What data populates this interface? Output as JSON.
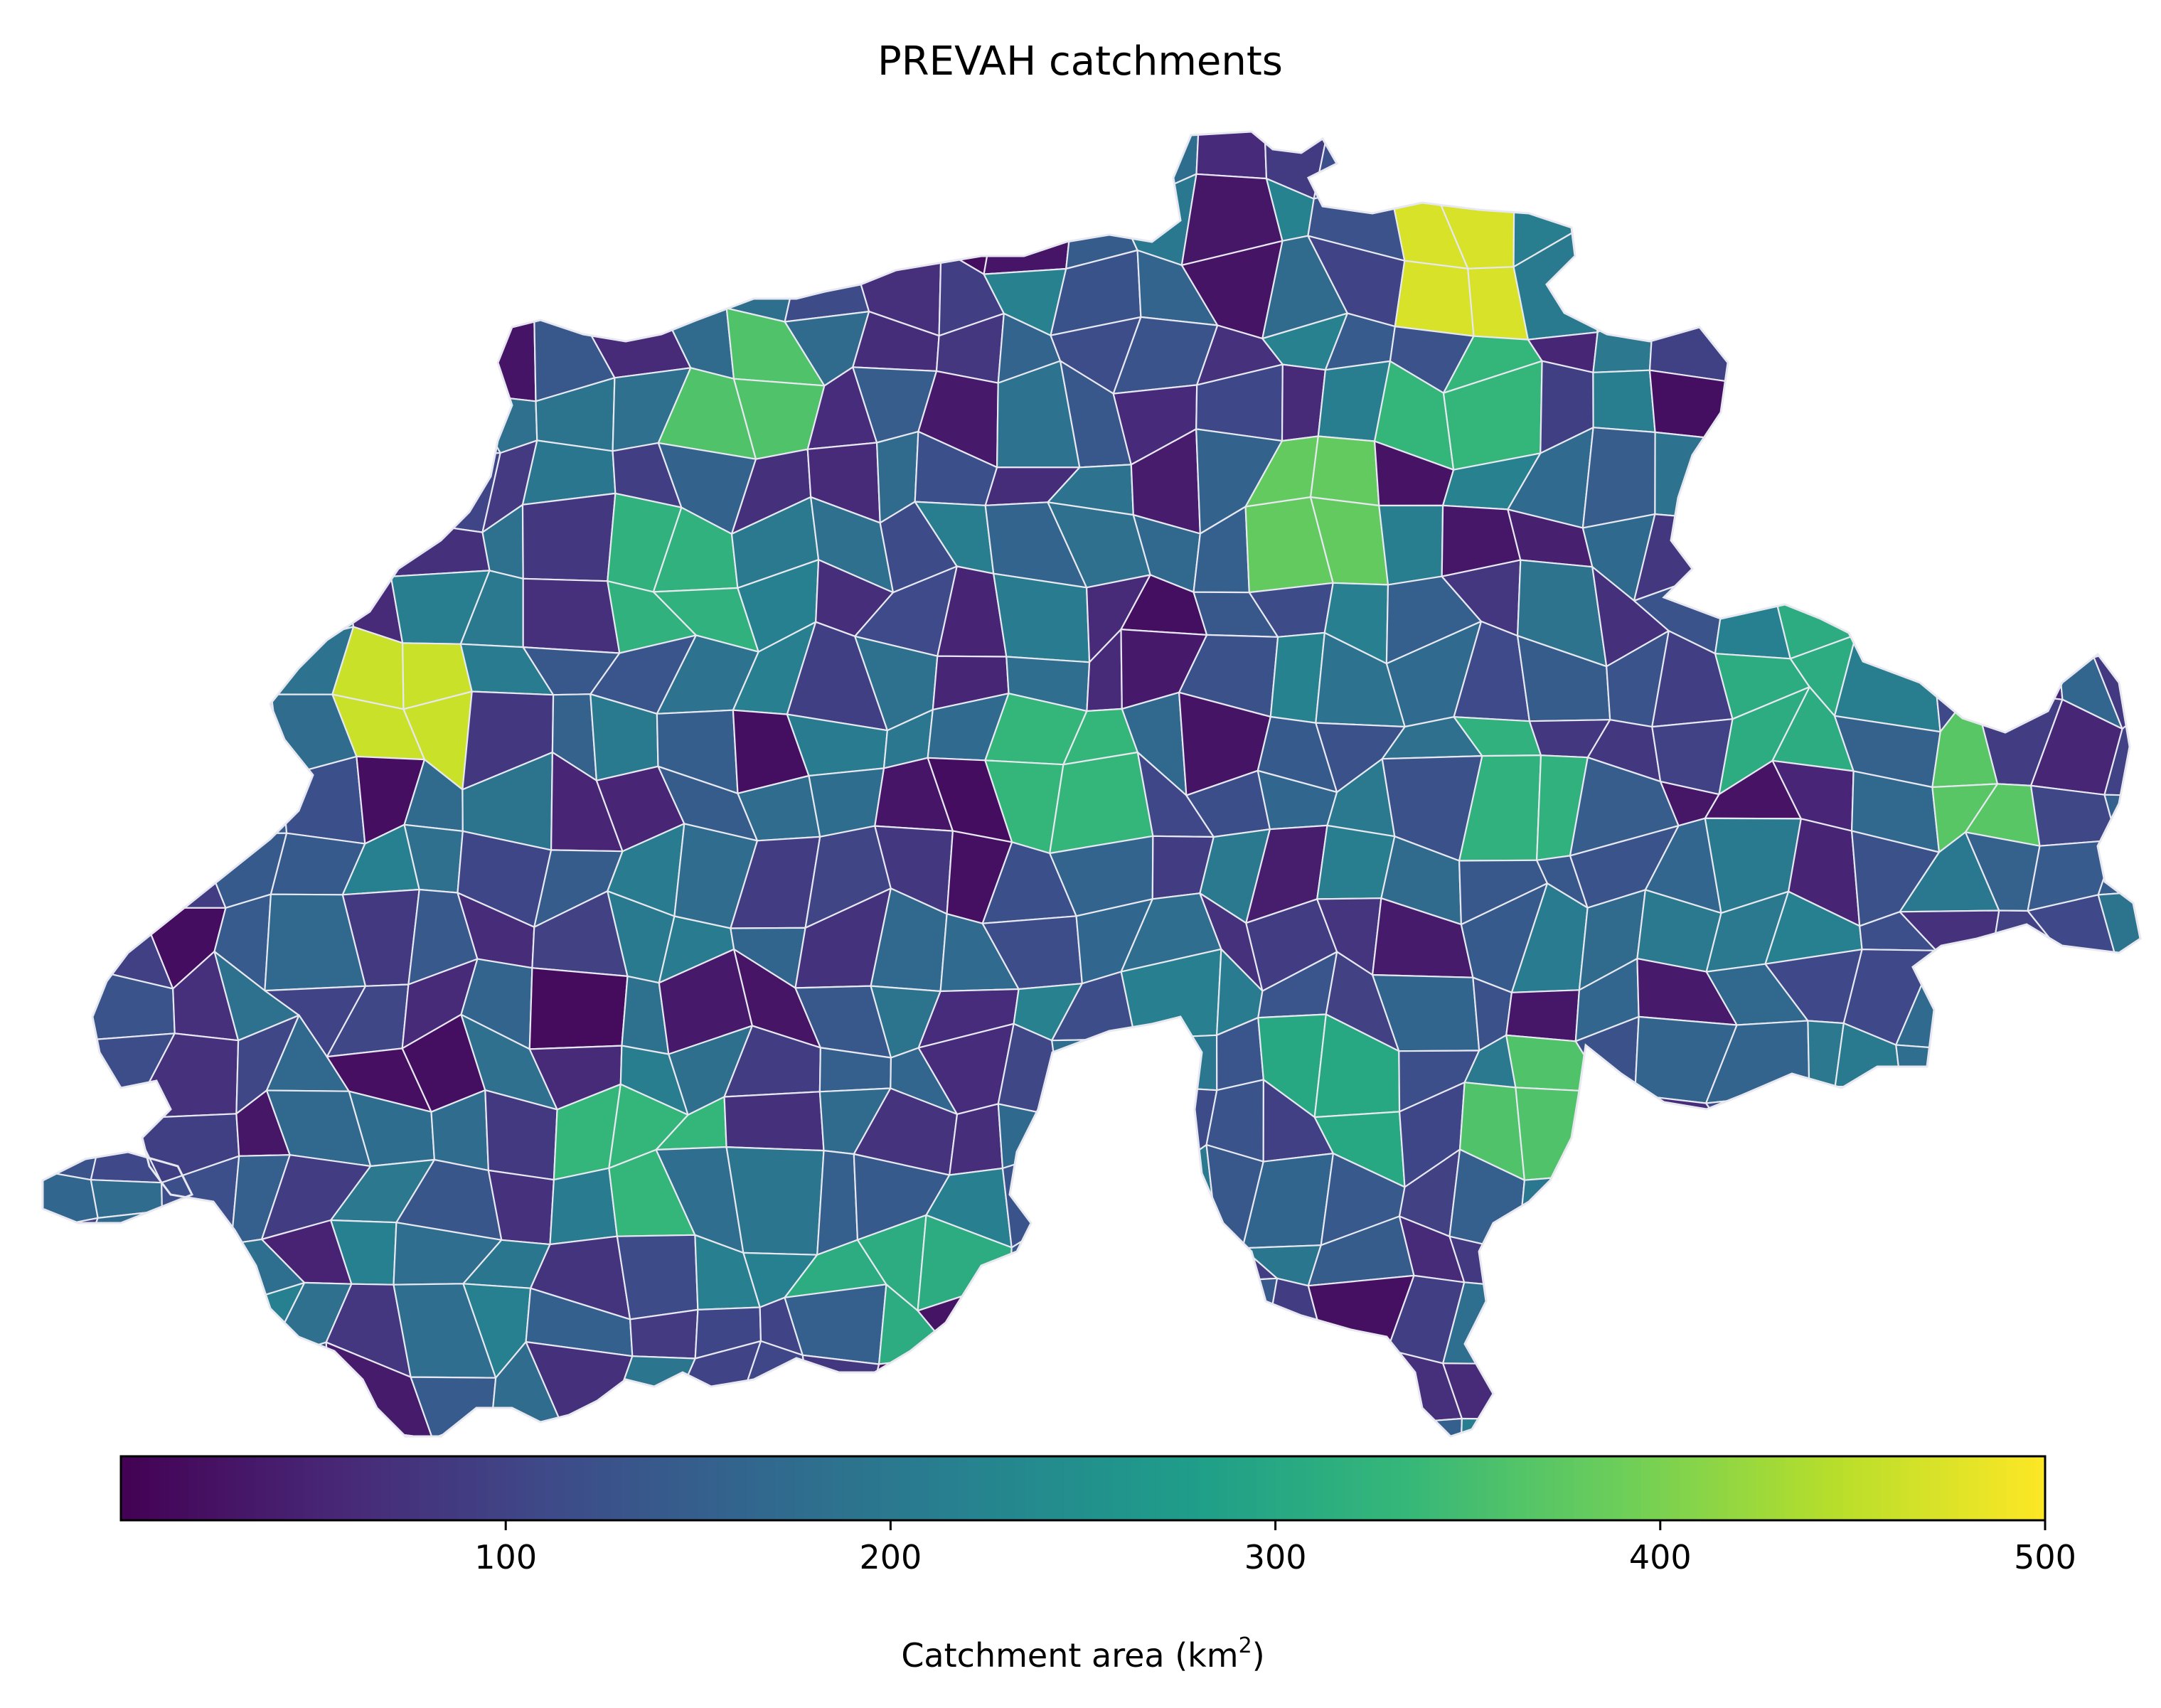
{
  "title": "PREVAH catchments",
  "colorbar": {
    "label_prefix": "Catchment area (km",
    "label_sup": "2",
    "label_suffix": ")",
    "colormap": "viridis",
    "vmin": 0,
    "vmax": 500,
    "orientation": "horizontal",
    "placement": "bottom",
    "ticks": [
      {
        "value": 100,
        "label": "100"
      },
      {
        "value": 200,
        "label": "200"
      },
      {
        "value": 300,
        "label": "300"
      },
      {
        "value": 400,
        "label": "400"
      },
      {
        "value": 500,
        "label": "500"
      }
    ]
  },
  "map": {
    "region": "Switzerland",
    "variable": "catchment area",
    "unit": "km²",
    "value_range": [
      0,
      500
    ],
    "notable_catchments": [
      {
        "location": "west (Jura / Lake Neuchâtel)",
        "area_km2": 460
      },
      {
        "location": "northeast (Rhine / Thur)",
        "area_km2": 470
      },
      {
        "location": "north (Jura)",
        "area_km2": 360
      },
      {
        "location": "central north (Reuss / Lake Zurich)",
        "area_km2": 380
      },
      {
        "location": "far east (Engadin)",
        "area_km2": 370
      },
      {
        "location": "southeast (Ticino)",
        "area_km2": 360
      },
      {
        "location": "central (Emme)",
        "area_km2": 330
      }
    ]
  },
  "colors": {
    "background": "#ffffff",
    "boundary": "#e8e8f0",
    "colormap_stops": [
      "#440154",
      "#482777",
      "#3e4a89",
      "#31688e",
      "#26838f",
      "#1f9d8a",
      "#35b779",
      "#6cce5a",
      "#b6de2b",
      "#fde725"
    ]
  }
}
